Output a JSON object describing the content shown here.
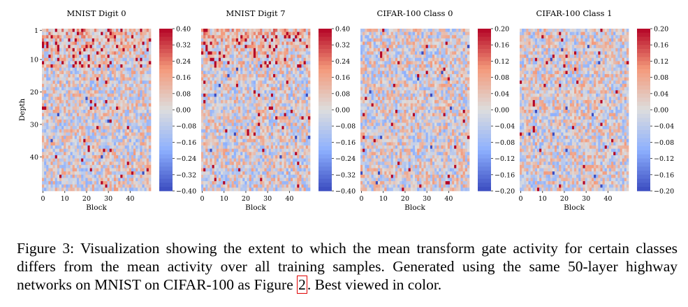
{
  "chart_data": [
    {
      "type": "heatmap",
      "title": "MNIST Digit 0",
      "xlabel": "Block",
      "ylabel": "Depth",
      "x_ticks": [
        0,
        10,
        20,
        30,
        40
      ],
      "y_ticks": [
        1,
        10,
        20,
        30,
        40
      ],
      "rows": 50,
      "cols": 50,
      "colorbar": {
        "ticks": [
          "0.40",
          "0.32",
          "0.24",
          "0.16",
          "0.08",
          "0.00",
          "−0.08",
          "−0.16",
          "−0.24",
          "−0.32",
          "−0.40"
        ],
        "vmin": -0.4,
        "vmax": 0.4
      },
      "colormap": "coolwarm"
    },
    {
      "type": "heatmap",
      "title": "MNIST Digit 7",
      "xlabel": "Block",
      "ylabel": "",
      "x_ticks": [
        0,
        10,
        20,
        30,
        40
      ],
      "y_ticks": [],
      "rows": 50,
      "cols": 50,
      "colorbar": {
        "ticks": [
          "0.40",
          "0.32",
          "0.24",
          "0.16",
          "0.08",
          "0.00",
          "−0.08",
          "−0.16",
          "−0.24",
          "−0.32",
          "−0.40"
        ],
        "vmin": -0.4,
        "vmax": 0.4
      },
      "colormap": "coolwarm"
    },
    {
      "type": "heatmap",
      "title": "CIFAR-100 Class 0",
      "xlabel": "Block",
      "ylabel": "",
      "x_ticks": [
        0,
        10,
        20,
        30,
        40
      ],
      "y_ticks": [],
      "rows": 50,
      "cols": 50,
      "colorbar": {
        "ticks": [
          "0.20",
          "0.16",
          "0.12",
          "0.08",
          "0.04",
          "0.00",
          "−0.04",
          "−0.08",
          "−0.12",
          "−0.16",
          "−0.20"
        ],
        "vmin": -0.2,
        "vmax": 0.2
      },
      "colormap": "coolwarm"
    },
    {
      "type": "heatmap",
      "title": "CIFAR-100 Class 1",
      "xlabel": "Block",
      "ylabel": "",
      "x_ticks": [
        0,
        10,
        20,
        30,
        40
      ],
      "y_ticks": [],
      "rows": 50,
      "cols": 50,
      "colorbar": {
        "ticks": [
          "0.20",
          "0.16",
          "0.12",
          "0.08",
          "0.04",
          "0.00",
          "−0.04",
          "−0.08",
          "−0.12",
          "−0.16",
          "−0.20"
        ],
        "vmin": -0.2,
        "vmax": 0.2
      },
      "colormap": "coolwarm"
    }
  ],
  "caption": {
    "label": "Figure 3:",
    "text_before_ref": " Visualization showing the extent to which the mean transform gate activity for certain classes differs from the mean activity over all training samples. Generated using the same 50-layer highway networks on MNIST on CIFAR-100 as Figure ",
    "ref": "2",
    "text_after_ref": ". Best viewed in color."
  }
}
